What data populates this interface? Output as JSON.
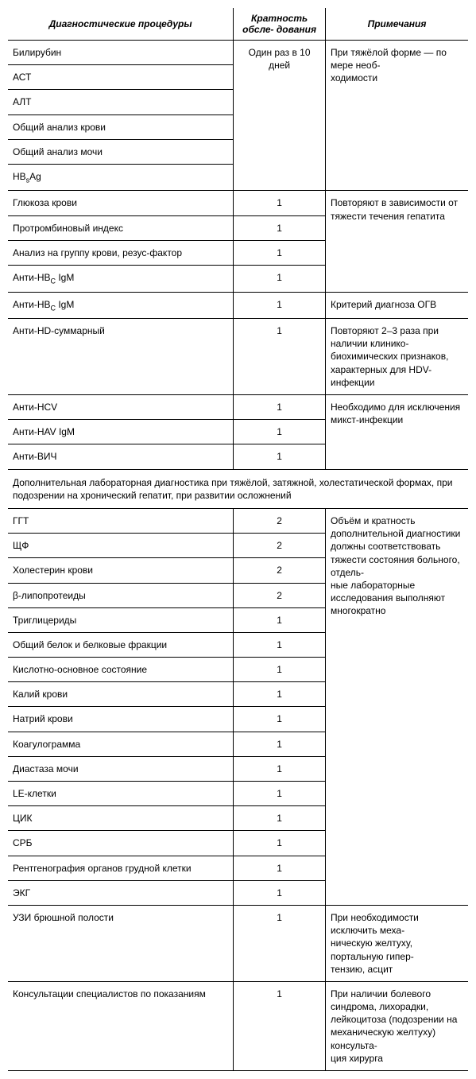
{
  "headers": {
    "procedures": "Диагностические процедуры",
    "frequency": "Кратность обсле-\nдования",
    "notes": "Примечания"
  },
  "group1": {
    "freq": "Один раз в 10 дней",
    "note": "При тяжёлой форме — по мере необ-\nходимости",
    "rows": [
      "Билирубин",
      "АСТ",
      "АЛТ",
      "Общий анализ крови",
      "Общий анализ мочи",
      "HB_sAg"
    ]
  },
  "group2": {
    "note": "Повторяют в зависимости от тяжести течения гепатита",
    "rows": [
      {
        "p": "Глюкоза крови",
        "f": "1"
      },
      {
        "p": "Протромбиновый индекс",
        "f": "1"
      },
      {
        "p": "Анализ на группу крови, резус-фактор",
        "f": "1"
      },
      {
        "p": "Анти-HB_C IgM",
        "f": "1"
      }
    ]
  },
  "row_antihbc2": {
    "p": "Анти-HB_C IgM",
    "f": "1",
    "n": "Критерий диагноза ОГВ"
  },
  "row_antihd": {
    "p": "Анти-HD-суммарный",
    "f": "1",
    "n": "Повторяют 2–3 раза при наличии клинико-биохимических признаков, характерных для HDV-инфекции"
  },
  "group3": {
    "note": "Необходимо для исключения микст-инфекции",
    "rows": [
      {
        "p": "Анти-HCV",
        "f": "1"
      },
      {
        "p": "Анти-HAV IgM",
        "f": "1"
      },
      {
        "p": "Анти-ВИЧ",
        "f": "1"
      }
    ]
  },
  "section_title": "Дополнительная лабораторная диагностика при тяжёлой, затяжной, холестатической формах, при подозрении на хронический гепатит, при развитии осложнений",
  "group4": {
    "note": "Объём и кратность дополнительной диагностики должны соответствовать тяжести состояния больного, отдель-\nные лабораторные исследования выполняют многократно",
    "rows": [
      {
        "p": "ГГТ",
        "f": "2"
      },
      {
        "p": "ЩФ",
        "f": "2"
      },
      {
        "p": "Холестерин крови",
        "f": "2"
      },
      {
        "p": "β-липопротеиды",
        "f": "2"
      },
      {
        "p": "Триглицериды",
        "f": "1"
      },
      {
        "p": "Общий белок и белковые фракции",
        "f": "1"
      },
      {
        "p": "Кислотно-основное состояние",
        "f": "1"
      },
      {
        "p": "Калий крови",
        "f": "1"
      },
      {
        "p": "Натрий крови",
        "f": "1"
      },
      {
        "p": "Коагулограмма",
        "f": "1"
      },
      {
        "p": "Диастаза мочи",
        "f": "1"
      },
      {
        "p": "LE-клетки",
        "f": "1"
      },
      {
        "p": "ЦИК",
        "f": "1"
      },
      {
        "p": "СРБ",
        "f": "1"
      },
      {
        "p": "Рентгенография органов грудной клетки",
        "f": "1"
      },
      {
        "p": "ЭКГ",
        "f": "1"
      }
    ]
  },
  "row_uzi": {
    "p": "УЗИ брюшной полости",
    "f": "1",
    "n": "При необходимости исключить меха-\nническую желтуху, портальную гипер-\nтензию, асцит"
  },
  "row_consult": {
    "p": "Консультации специалистов по показаниям",
    "f": "1",
    "n": "При наличии болевого синдрома, лихорадки, лейкоцитоза (подозрении на механическую желтуху) консульта-\nция хирурга"
  }
}
